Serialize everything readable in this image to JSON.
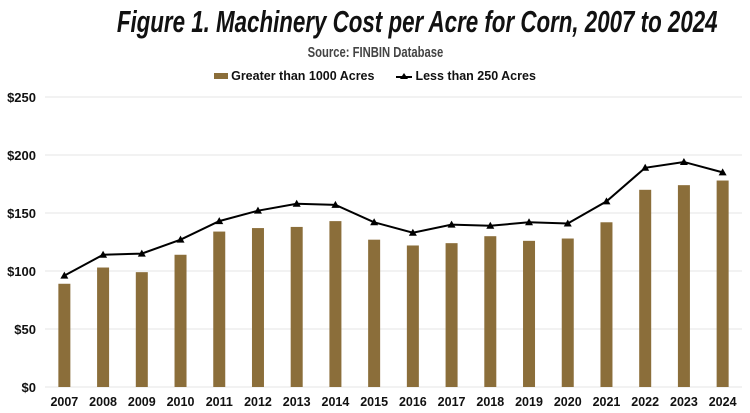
{
  "chart_data": {
    "type": "bar",
    "title": "Figure 1. Machinery Cost per Acre for Corn, 2007 to 2024",
    "subtitle": "Source:  FINBIN Database",
    "categories": [
      "2007",
      "2008",
      "2009",
      "2010",
      "2011",
      "2012",
      "2013",
      "2014",
      "2015",
      "2016",
      "2017",
      "2018",
      "2019",
      "2020",
      "2021",
      "2022",
      "2023",
      "2024"
    ],
    "series": [
      {
        "name": "Greater than 1000 Acres",
        "type": "bar",
        "color": "#8B6E3A",
        "values": [
          89,
          103,
          99,
          114,
          134,
          137,
          138,
          143,
          127,
          122,
          124,
          130,
          126,
          128,
          142,
          170,
          174,
          178
        ]
      },
      {
        "name": "Less than 250 Acres",
        "type": "line",
        "marker": "triangle",
        "color": "#000000",
        "values": [
          96,
          114,
          115,
          127,
          143,
          152,
          158,
          157,
          142,
          133,
          140,
          139,
          142,
          141,
          160,
          189,
          194,
          185
        ]
      }
    ],
    "ylim": [
      0,
      250
    ],
    "yticks": [
      0,
      50,
      100,
      150,
      200,
      250
    ],
    "ytick_labels": [
      "$0",
      "$50",
      "$100",
      "$150",
      "$200",
      "$250"
    ],
    "xlabel": "",
    "ylabel": "",
    "grid": true,
    "legend": "top-center"
  }
}
